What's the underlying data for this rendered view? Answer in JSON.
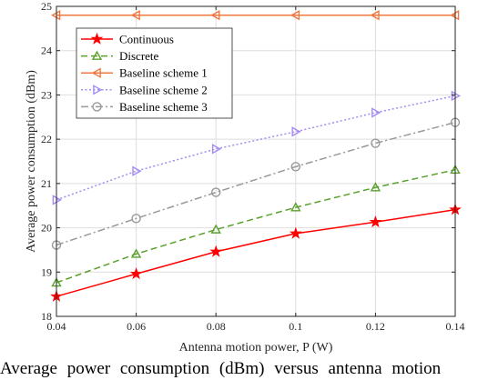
{
  "chart_data": {
    "type": "line",
    "title": "",
    "xlabel": "Antenna motion power, P (W)",
    "ylabel": "Average power consumption (dBm)",
    "xlim": [
      0.04,
      0.14
    ],
    "ylim": [
      18,
      25
    ],
    "x": [
      0.04,
      0.06,
      0.08,
      0.1,
      0.12,
      0.14
    ],
    "x_tick_labels": [
      "0.04",
      "0.06",
      "0.08",
      "0.1",
      "0.12",
      "0.14"
    ],
    "y_ticks": [
      18,
      19,
      20,
      21,
      22,
      23,
      24,
      25
    ],
    "y_tick_labels": [
      "18",
      "19",
      "20",
      "21",
      "22",
      "23",
      "24",
      "25"
    ],
    "grid": true,
    "legend_position": "top-left",
    "series": [
      {
        "name": "Continuous",
        "values": [
          18.45,
          18.96,
          19.46,
          19.87,
          20.13,
          20.41
        ],
        "color": "#ff0000",
        "marker": "star",
        "dash": "solid"
      },
      {
        "name": "Discrete",
        "values": [
          18.76,
          19.41,
          19.96,
          20.46,
          20.91,
          21.31
        ],
        "color": "#5aa02c",
        "marker": "triangle-up",
        "dash": "dashed"
      },
      {
        "name": "Baseline scheme 1",
        "values": [
          24.8,
          24.8,
          24.8,
          24.8,
          24.8,
          24.8
        ],
        "color": "#f07840",
        "marker": "triangle-left",
        "dash": "solid"
      },
      {
        "name": "Baseline scheme 2",
        "values": [
          20.63,
          21.28,
          21.78,
          22.17,
          22.6,
          22.98
        ],
        "color": "#a48cf0",
        "marker": "triangle-right",
        "dash": "dotted"
      },
      {
        "name": "Baseline scheme 3",
        "values": [
          19.61,
          20.21,
          20.8,
          21.38,
          21.91,
          22.38
        ],
        "color": "#999999",
        "marker": "circle",
        "dash": "dashdot"
      }
    ]
  },
  "caption": {
    "text": "Average power consumption (dBm) versus antenna motion"
  }
}
